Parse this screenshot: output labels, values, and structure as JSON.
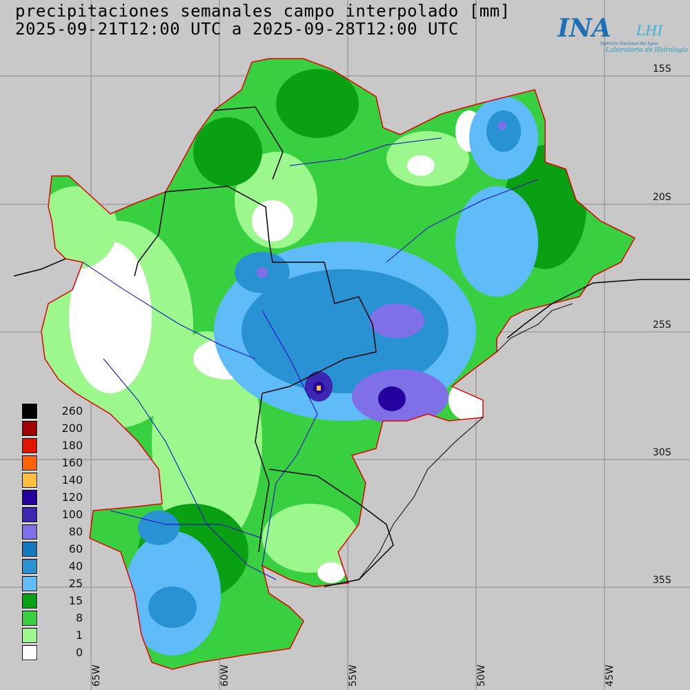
{
  "title": {
    "line1": "precipitaciones semanales campo interpolado [mm]",
    "line2": "2025-09-21T12:00 UTC a 2025-09-28T12:00 UTC"
  },
  "logo": {
    "main": "INA",
    "lab": "LHI",
    "institute": "Instituto Nacional del Agua",
    "laboratory": "Laboratorio de Hidrología"
  },
  "legend": [
    {
      "value": "260",
      "color": "#000000"
    },
    {
      "value": "200",
      "color": "#a00000"
    },
    {
      "value": "180",
      "color": "#e01400"
    },
    {
      "value": "160",
      "color": "#ff6400"
    },
    {
      "value": "140",
      "color": "#ffc040"
    },
    {
      "value": "120",
      "color": "#24009c"
    },
    {
      "value": "100",
      "color": "#3c28b0"
    },
    {
      "value": "80",
      "color": "#8070e8"
    },
    {
      "value": "60",
      "color": "#1478bc"
    },
    {
      "value": "40",
      "color": "#2892d2"
    },
    {
      "value": "25",
      "color": "#60bcf8"
    },
    {
      "value": "15",
      "color": "#0aa014"
    },
    {
      "value": "8",
      "color": "#38d040"
    },
    {
      "value": "1",
      "color": "#9cf88c"
    },
    {
      "value": "0",
      "color": "#ffffff"
    }
  ],
  "lat_labels": [
    "15S",
    "20S",
    "25S",
    "30S",
    "35S"
  ],
  "lon_labels": [
    "65W",
    "60W",
    "55W",
    "50W",
    "45W"
  ]
}
